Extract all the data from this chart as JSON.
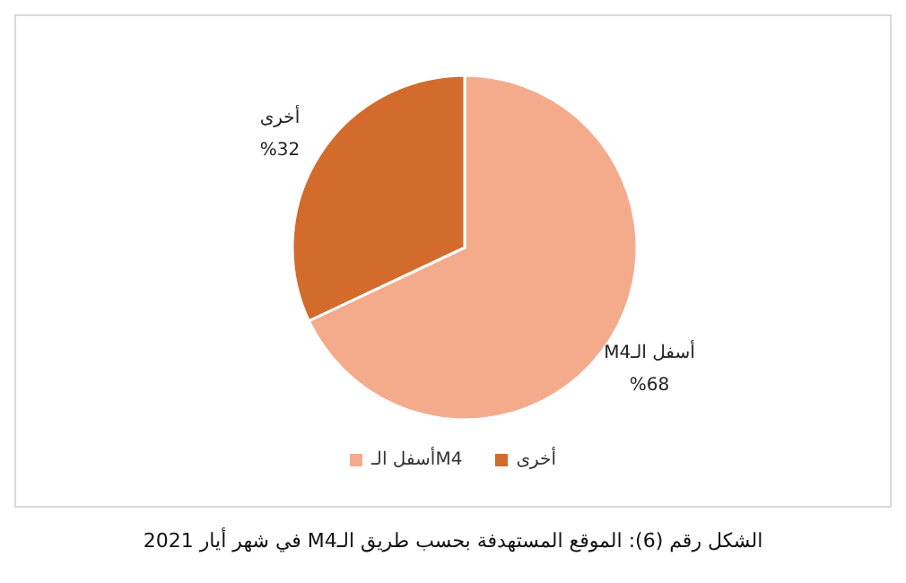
{
  "chart_data": {
    "type": "pie",
    "title": "الشكل رقم (6): الموقع المستهدفة بحسب طريق الـM4 في شهر أيار 2021",
    "categories": [
      "أسفل الـM4",
      "أخرى"
    ],
    "values": [
      68,
      32
    ],
    "colors": [
      "#f4ab8c",
      "#d26b2b"
    ],
    "value_labels": [
      "%68",
      "%32"
    ],
    "legend": "bottom"
  }
}
